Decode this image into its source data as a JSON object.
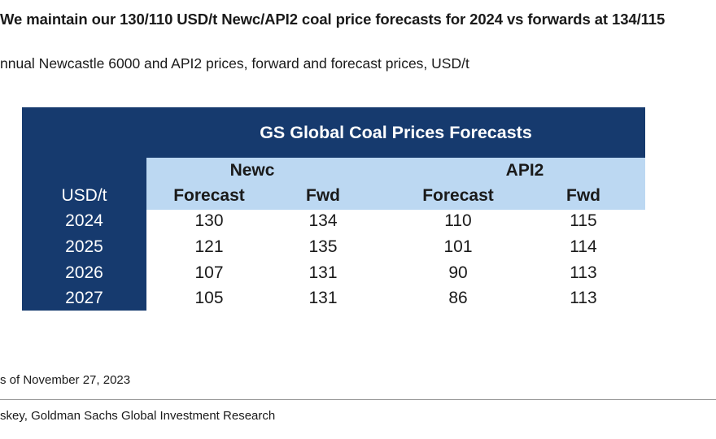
{
  "header": {
    "title": "We maintain our 130/110 USD/t Newc/API2 coal price forecasts for 2024 vs forwards at 134/115",
    "subtitle": "nnual Newcastle 6000 and API2 prices, forward and forecast prices, USD/t"
  },
  "table": {
    "title": "GS Global Coal Prices Forecasts",
    "groups": [
      "Newc",
      "API2"
    ],
    "unit_label": "USD/t",
    "subheaders": [
      "Forecast",
      "Fwd",
      "Forecast",
      "Fwd"
    ],
    "rows": [
      {
        "year": "2024",
        "values": [
          "130",
          "134",
          "110",
          "115"
        ]
      },
      {
        "year": "2025",
        "values": [
          "121",
          "135",
          "101",
          "114"
        ]
      },
      {
        "year": "2026",
        "values": [
          "107",
          "131",
          "90",
          "113"
        ]
      },
      {
        "year": "2027",
        "values": [
          "105",
          "131",
          "86",
          "113"
        ]
      }
    ]
  },
  "footer": {
    "note": "s of November 27, 2023",
    "source": "skey, Goldman Sachs Global Investment Research"
  },
  "colors": {
    "dark_navy": "#163a6e",
    "light_blue": "#bcd8f2"
  }
}
